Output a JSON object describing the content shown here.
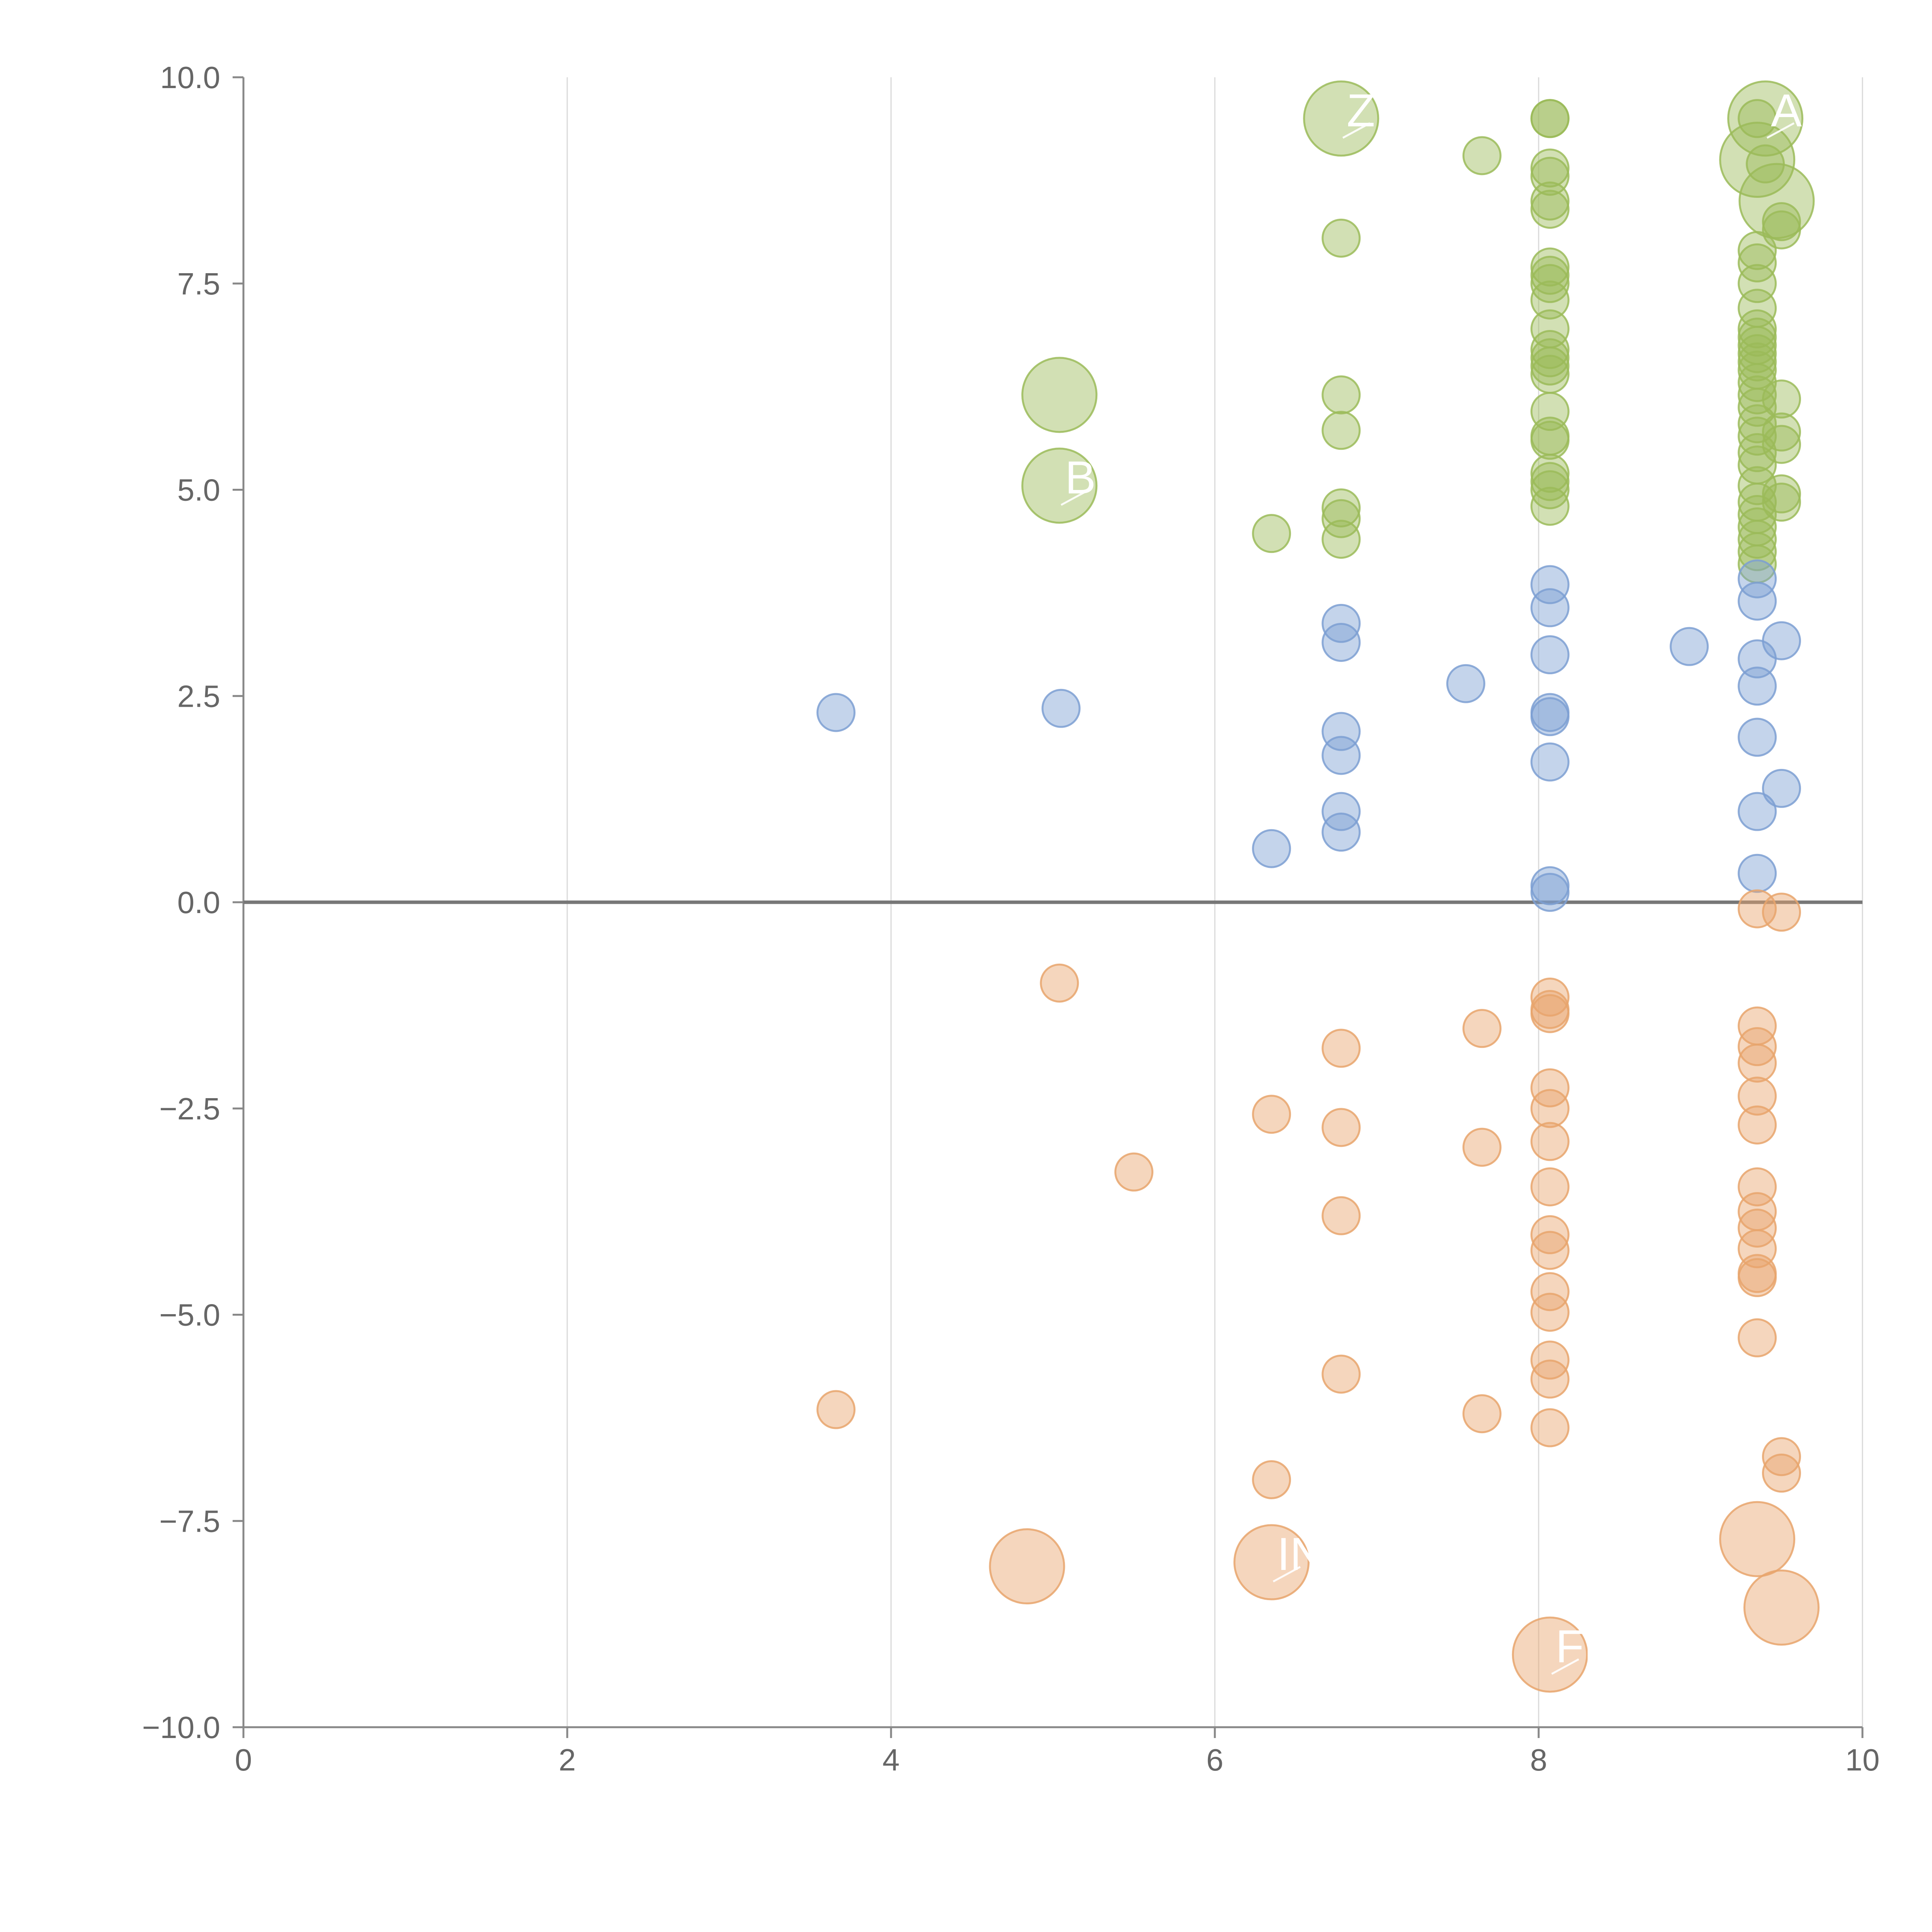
{
  "chart_data": {
    "type": "scatter",
    "subtype": "bubble",
    "title": "",
    "xlabel": "",
    "ylabel": "",
    "xlim": [
      0,
      10
    ],
    "ylim": [
      -10,
      10
    ],
    "x_ticks": [
      "0",
      "2",
      "4",
      "6",
      "8",
      "10"
    ],
    "y_ticks": [
      "10.0",
      "7.5",
      "5.0",
      "2.5",
      "0.0",
      "−2.5",
      "−5.0",
      "−7.5",
      "−10.0"
    ],
    "vertical_grid": true,
    "horizontal_grid": false,
    "zero_line": true,
    "legend": "none",
    "colors": {
      "green": "#9bbb59",
      "blue": "#7c9fd2",
      "orange": "#e8a46c",
      "axis": "#888888",
      "grid": "#d9d9d9",
      "zero_line": "#777777",
      "label": "#ffffff"
    },
    "series": [
      {
        "color_key": "green",
        "points": [
          {
            "x": 6.78,
            "y": 9.5,
            "r": 3,
            "label": "Z"
          },
          {
            "x": 7.65,
            "y": 9.05,
            "r": 1
          },
          {
            "x": 6.78,
            "y": 8.05,
            "r": 1
          },
          {
            "x": 8.07,
            "y": 9.5,
            "r": 1
          },
          {
            "x": 8.07,
            "y": 9.5,
            "r": 1
          },
          {
            "x": 8.07,
            "y": 8.9,
            "r": 1
          },
          {
            "x": 8.07,
            "y": 8.8,
            "r": 1
          },
          {
            "x": 8.07,
            "y": 8.5,
            "r": 1
          },
          {
            "x": 8.07,
            "y": 8.4,
            "r": 1
          },
          {
            "x": 8.07,
            "y": 7.7,
            "r": 1
          },
          {
            "x": 8.07,
            "y": 7.6,
            "r": 1
          },
          {
            "x": 8.07,
            "y": 7.5,
            "r": 1
          },
          {
            "x": 8.07,
            "y": 7.3,
            "r": 1
          },
          {
            "x": 8.07,
            "y": 6.95,
            "r": 1
          },
          {
            "x": 8.07,
            "y": 6.7,
            "r": 1
          },
          {
            "x": 8.07,
            "y": 6.6,
            "r": 1
          },
          {
            "x": 8.07,
            "y": 6.5,
            "r": 1
          },
          {
            "x": 8.07,
            "y": 6.4,
            "r": 1
          },
          {
            "x": 8.07,
            "y": 5.95,
            "r": 1
          },
          {
            "x": 8.07,
            "y": 5.65,
            "r": 1
          },
          {
            "x": 8.07,
            "y": 5.6,
            "r": 1
          },
          {
            "x": 8.07,
            "y": 5.2,
            "r": 1
          },
          {
            "x": 8.07,
            "y": 5.1,
            "r": 1
          },
          {
            "x": 8.07,
            "y": 5.0,
            "r": 1
          },
          {
            "x": 8.07,
            "y": 4.8,
            "r": 1
          },
          {
            "x": 9.35,
            "y": 9.5,
            "r": 1
          },
          {
            "x": 9.4,
            "y": 9.5,
            "r": 3,
            "label": "AF"
          },
          {
            "x": 9.35,
            "y": 9.0,
            "r": 3
          },
          {
            "x": 9.4,
            "y": 8.95,
            "r": 1
          },
          {
            "x": 9.47,
            "y": 8.5,
            "r": 3
          },
          {
            "x": 9.5,
            "y": 8.25,
            "r": 1
          },
          {
            "x": 9.5,
            "y": 8.15,
            "r": 1
          },
          {
            "x": 9.35,
            "y": 7.9,
            "r": 1
          },
          {
            "x": 9.35,
            "y": 7.75,
            "r": 1
          },
          {
            "x": 9.35,
            "y": 7.5,
            "r": 1
          },
          {
            "x": 9.35,
            "y": 7.2,
            "r": 1
          },
          {
            "x": 9.35,
            "y": 6.95,
            "r": 1
          },
          {
            "x": 9.35,
            "y": 6.85,
            "r": 1
          },
          {
            "x": 9.35,
            "y": 6.75,
            "r": 1
          },
          {
            "x": 9.35,
            "y": 6.65,
            "r": 1
          },
          {
            "x": 9.35,
            "y": 6.55,
            "r": 1
          },
          {
            "x": 9.35,
            "y": 6.45,
            "r": 1
          },
          {
            "x": 9.35,
            "y": 6.3,
            "r": 1
          },
          {
            "x": 9.35,
            "y": 6.15,
            "r": 1
          },
          {
            "x": 9.35,
            "y": 6.0,
            "r": 1
          },
          {
            "x": 9.35,
            "y": 5.8,
            "r": 1
          },
          {
            "x": 9.35,
            "y": 5.65,
            "r": 1
          },
          {
            "x": 9.35,
            "y": 5.45,
            "r": 1
          },
          {
            "x": 9.35,
            "y": 5.3,
            "r": 1
          },
          {
            "x": 9.35,
            "y": 5.05,
            "r": 1
          },
          {
            "x": 9.35,
            "y": 4.85,
            "r": 1
          },
          {
            "x": 9.35,
            "y": 4.7,
            "r": 1
          },
          {
            "x": 9.35,
            "y": 4.55,
            "r": 1
          },
          {
            "x": 9.35,
            "y": 4.4,
            "r": 1
          },
          {
            "x": 9.35,
            "y": 4.25,
            "r": 1
          },
          {
            "x": 9.35,
            "y": 4.1,
            "r": 1
          },
          {
            "x": 9.5,
            "y": 6.1,
            "r": 1
          },
          {
            "x": 9.5,
            "y": 5.7,
            "r": 1
          },
          {
            "x": 9.5,
            "y": 5.55,
            "r": 1
          },
          {
            "x": 9.5,
            "y": 4.95,
            "r": 1
          },
          {
            "x": 9.5,
            "y": 4.85,
            "r": 1
          },
          {
            "x": 5.04,
            "y": 6.15,
            "r": 3
          },
          {
            "x": 5.04,
            "y": 5.05,
            "r": 3,
            "label": "B"
          },
          {
            "x": 6.78,
            "y": 6.15,
            "r": 1
          },
          {
            "x": 6.78,
            "y": 5.72,
            "r": 1
          },
          {
            "x": 6.78,
            "y": 4.78,
            "r": 1
          },
          {
            "x": 6.78,
            "y": 4.65,
            "r": 1
          },
          {
            "x": 6.78,
            "y": 4.4,
            "r": 1
          },
          {
            "x": 6.35,
            "y": 4.47,
            "r": 1
          }
        ]
      },
      {
        "color_key": "blue",
        "points": [
          {
            "x": 3.66,
            "y": 2.3,
            "r": 1
          },
          {
            "x": 5.05,
            "y": 2.35,
            "r": 1
          },
          {
            "x": 6.35,
            "y": 0.65,
            "r": 1
          },
          {
            "x": 6.78,
            "y": 3.38,
            "r": 1
          },
          {
            "x": 6.78,
            "y": 3.15,
            "r": 1
          },
          {
            "x": 6.78,
            "y": 2.07,
            "r": 1
          },
          {
            "x": 6.78,
            "y": 1.78,
            "r": 1
          },
          {
            "x": 6.78,
            "y": 1.1,
            "r": 1
          },
          {
            "x": 6.78,
            "y": 0.85,
            "r": 1
          },
          {
            "x": 7.55,
            "y": 2.65,
            "r": 1
          },
          {
            "x": 8.07,
            "y": 3.85,
            "r": 1
          },
          {
            "x": 8.07,
            "y": 3.57,
            "r": 1
          },
          {
            "x": 8.07,
            "y": 3.0,
            "r": 1
          },
          {
            "x": 8.07,
            "y": 2.3,
            "r": 1
          },
          {
            "x": 8.07,
            "y": 2.25,
            "r": 1
          },
          {
            "x": 8.07,
            "y": 1.7,
            "r": 1
          },
          {
            "x": 8.07,
            "y": 0.2,
            "r": 1
          },
          {
            "x": 8.07,
            "y": 0.12,
            "r": 1
          },
          {
            "x": 8.93,
            "y": 3.1,
            "r": 1
          },
          {
            "x": 9.35,
            "y": 3.92,
            "r": 1
          },
          {
            "x": 9.35,
            "y": 3.65,
            "r": 1
          },
          {
            "x": 9.35,
            "y": 2.95,
            "r": 1
          },
          {
            "x": 9.35,
            "y": 2.62,
            "r": 1
          },
          {
            "x": 9.35,
            "y": 2.0,
            "r": 1
          },
          {
            "x": 9.35,
            "y": 1.1,
            "r": 1
          },
          {
            "x": 9.35,
            "y": 0.35,
            "r": 1
          },
          {
            "x": 9.5,
            "y": 3.17,
            "r": 1
          },
          {
            "x": 9.5,
            "y": 1.38,
            "r": 1
          }
        ]
      },
      {
        "color_key": "orange",
        "points": [
          {
            "x": 3.66,
            "y": -6.15,
            "r": 1
          },
          {
            "x": 4.84,
            "y": -8.05,
            "r": 3
          },
          {
            "x": 5.04,
            "y": -0.98,
            "r": 1
          },
          {
            "x": 5.5,
            "y": -3.27,
            "r": 1
          },
          {
            "x": 6.35,
            "y": -2.57,
            "r": 1
          },
          {
            "x": 6.35,
            "y": -7.0,
            "r": 1
          },
          {
            "x": 6.35,
            "y": -8.0,
            "r": 3,
            "label": "IN"
          },
          {
            "x": 6.78,
            "y": -1.77,
            "r": 1
          },
          {
            "x": 6.78,
            "y": -2.73,
            "r": 1
          },
          {
            "x": 6.78,
            "y": -3.8,
            "r": 1
          },
          {
            "x": 6.78,
            "y": -5.72,
            "r": 1
          },
          {
            "x": 7.65,
            "y": -1.53,
            "r": 1
          },
          {
            "x": 7.65,
            "y": -2.97,
            "r": 1
          },
          {
            "x": 7.65,
            "y": -6.2,
            "r": 1
          },
          {
            "x": 8.07,
            "y": -1.15,
            "r": 1
          },
          {
            "x": 8.07,
            "y": -1.3,
            "r": 1
          },
          {
            "x": 8.07,
            "y": -1.35,
            "r": 1
          },
          {
            "x": 8.07,
            "y": -2.25,
            "r": 1
          },
          {
            "x": 8.07,
            "y": -2.5,
            "r": 1
          },
          {
            "x": 8.07,
            "y": -2.9,
            "r": 1
          },
          {
            "x": 8.07,
            "y": -3.45,
            "r": 1
          },
          {
            "x": 8.07,
            "y": -4.03,
            "r": 1
          },
          {
            "x": 8.07,
            "y": -4.22,
            "r": 1
          },
          {
            "x": 8.07,
            "y": -4.72,
            "r": 1
          },
          {
            "x": 8.07,
            "y": -4.97,
            "r": 1
          },
          {
            "x": 8.07,
            "y": -5.55,
            "r": 1
          },
          {
            "x": 8.07,
            "y": -5.78,
            "r": 1
          },
          {
            "x": 8.07,
            "y": -6.37,
            "r": 1
          },
          {
            "x": 8.07,
            "y": -9.12,
            "r": 3,
            "label": "FLI"
          },
          {
            "x": 9.35,
            "y": -0.08,
            "r": 1
          },
          {
            "x": 9.35,
            "y": -1.5,
            "r": 1
          },
          {
            "x": 9.35,
            "y": -1.75,
            "r": 1
          },
          {
            "x": 9.35,
            "y": -1.95,
            "r": 1
          },
          {
            "x": 9.35,
            "y": -2.35,
            "r": 1
          },
          {
            "x": 9.35,
            "y": -2.7,
            "r": 1
          },
          {
            "x": 9.35,
            "y": -3.45,
            "r": 1
          },
          {
            "x": 9.35,
            "y": -3.75,
            "r": 1
          },
          {
            "x": 9.35,
            "y": -3.95,
            "r": 1
          },
          {
            "x": 9.35,
            "y": -4.2,
            "r": 1
          },
          {
            "x": 9.35,
            "y": -4.5,
            "r": 1
          },
          {
            "x": 9.35,
            "y": -4.55,
            "r": 1
          },
          {
            "x": 9.35,
            "y": -5.28,
            "r": 1
          },
          {
            "x": 9.35,
            "y": -7.72,
            "r": 3
          },
          {
            "x": 9.5,
            "y": -0.12,
            "r": 1
          },
          {
            "x": 9.5,
            "y": -6.72,
            "r": 1
          },
          {
            "x": 9.5,
            "y": -6.92,
            "r": 1
          },
          {
            "x": 9.5,
            "y": -8.55,
            "r": 3
          }
        ]
      }
    ]
  }
}
